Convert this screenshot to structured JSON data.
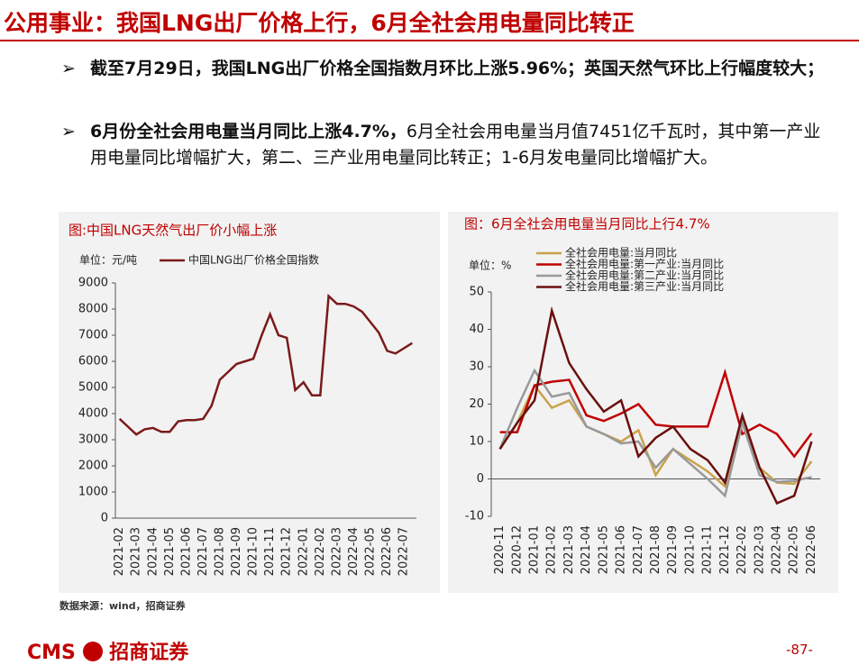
{
  "header": {
    "title": "公用事业：我国LNG出厂价格上行，6月全社会用电量同比转正"
  },
  "bullets": [
    {
      "bold": "截至7月29日，我国LNG出厂价格全国指数月环比上涨5.96%；英国天然气环比上行幅度较大；",
      "text": ""
    },
    {
      "bold": "6月份全社会用电量当月同比上涨4.7%，",
      "text": "6月全社会用电量当月值7451亿千瓦时，其中第一产业用电量同比增幅扩大，第二、三产业用电量同比转正；1-6月发电量同比增幅扩大。"
    }
  ],
  "source": "数据来源：wind，招商证券",
  "footer": {
    "logo": "CMS",
    "brand": "招商证券",
    "page": "-87-"
  },
  "chart_data": [
    {
      "type": "line",
      "title": "图:中国LNG天然气出厂价小幅上涨",
      "unit": "单位：元/吨",
      "categories": [
        "2021-02",
        null,
        "2021-03",
        null,
        "2021-04",
        null,
        "2021-05",
        null,
        "2021-06",
        null,
        "2021-07",
        null,
        "2021-08",
        null,
        "2021-09",
        null,
        "2021-10",
        null,
        "2021-11",
        null,
        "2021-12",
        null,
        "2022-01",
        null,
        "2022-02",
        null,
        "2022-03",
        null,
        "2022-04",
        null,
        "2022-05",
        null,
        "2022-06",
        null,
        "2022-07",
        null
      ],
      "series": [
        {
          "name": "中国LNG出厂价格全国指数",
          "color": "#7b1a1a",
          "values": [
            3800,
            3500,
            3200,
            3400,
            3450,
            3300,
            3300,
            3700,
            3750,
            3750,
            3800,
            4300,
            5300,
            5600,
            5900,
            6000,
            6100,
            7000,
            7800,
            7000,
            6900,
            4900,
            5200,
            4700,
            4700,
            8500,
            8200,
            8200,
            8100,
            7900,
            7500,
            7100,
            6400,
            6300,
            6500,
            6700
          ]
        }
      ],
      "ylim": [
        0,
        9000
      ],
      "yticks": [
        0,
        1000,
        2000,
        3000,
        4000,
        5000,
        6000,
        7000,
        8000,
        9000
      ]
    },
    {
      "type": "line",
      "title": "图：6月全社会用电量当月同比上行4.7%",
      "unit": "单位：%",
      "categories": [
        "2020-11",
        "2020-12",
        "2021-01",
        "2021-02",
        "2021-03",
        "2021-04",
        "2021-05",
        "2021-06",
        "2021-07",
        "2021-08",
        "2021-09",
        "2021-10",
        "2021-11",
        "2021-12",
        "2022-02",
        "2022-03",
        "2022-04",
        "2022-05",
        "2022-06"
      ],
      "series": [
        {
          "name": "全社会用电量:当月同比",
          "color": "#c9a24a",
          "values": [
            8,
            15,
            25,
            19,
            21,
            14,
            12,
            10,
            13,
            1,
            8,
            5,
            2,
            -2,
            15,
            3,
            -1,
            -1.3,
            4.7
          ]
        },
        {
          "name": "全社会用电量:第一产业:当月同比",
          "color": "#c00000",
          "values": [
            12.5,
            12.5,
            25,
            26,
            26.5,
            17,
            15.5,
            17.5,
            20,
            14.5,
            14,
            14,
            14,
            28.5,
            12,
            14.5,
            12,
            6,
            12.2
          ]
        },
        {
          "name": "全社会用电量:第二产业:当月同比",
          "color": "#999999",
          "values": [
            8,
            19,
            29,
            22,
            23,
            14,
            12,
            9.5,
            10,
            3,
            8,
            4,
            0,
            -4.5,
            15,
            1,
            -0.8,
            -0.5,
            0.5
          ]
        },
        {
          "name": "全社会用电量:第三产业:当月同比",
          "color": "#6b0f0f",
          "values": [
            8,
            15,
            21,
            45,
            31,
            24,
            18,
            21,
            6,
            11,
            14,
            8,
            5,
            -1,
            17,
            3,
            -6.5,
            -4.5,
            10
          ]
        }
      ],
      "ylim": [
        -10,
        50
      ],
      "yticks": [
        -10,
        0,
        10,
        20,
        30,
        40,
        50
      ]
    }
  ]
}
